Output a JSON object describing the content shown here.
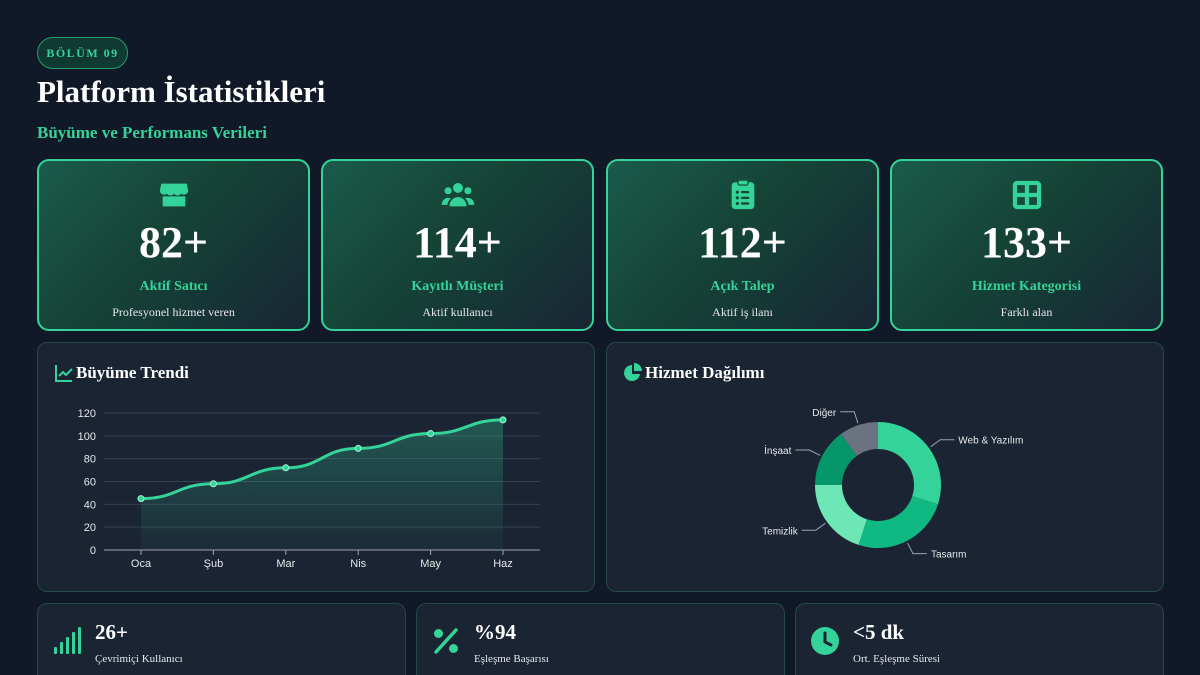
{
  "header": {
    "badge": "BÖLÜM 09",
    "title": "Platform İstatistikleri",
    "subtitle": "Büyüme ve Performans Verileri"
  },
  "stats": [
    {
      "icon": "store-icon",
      "value": "82+",
      "label": "Aktif Satıcı",
      "desc": "Profesyonel hizmet veren"
    },
    {
      "icon": "users-icon",
      "value": "114+",
      "label": "Kayıtlı Müşteri",
      "desc": "Aktif kullanıcı"
    },
    {
      "icon": "clipboard-list-icon",
      "value": "112+",
      "label": "Açık Talep",
      "desc": "Aktif iş ilanı"
    },
    {
      "icon": "grid-icon",
      "value": "133+",
      "label": "Hizmet Kategorisi",
      "desc": "Farklı alan"
    }
  ],
  "growth": {
    "title": "Büyüme Trendi",
    "chart_data": {
      "type": "area",
      "title": "Büyüme Trendi",
      "categories": [
        "Oca",
        "Şub",
        "Mar",
        "Nis",
        "May",
        "Haz"
      ],
      "values": [
        45,
        58,
        72,
        89,
        102,
        114
      ],
      "ylim": [
        0,
        120
      ],
      "yticks": [
        0,
        20,
        40,
        60,
        80,
        100,
        120
      ],
      "grid": true
    }
  },
  "distribution": {
    "title": "Hizmet Dağılımı",
    "chart_data": {
      "type": "pie",
      "title": "Hizmet Dağılımı",
      "donut": true,
      "labels": [
        "Web & Yazılım",
        "Tasarım",
        "Temizlik",
        "İnşaat",
        "Diğer"
      ],
      "values": [
        30,
        25,
        20,
        15,
        10
      ],
      "colors": [
        "#34d399",
        "#10b981",
        "#6ee7b7",
        "#059669",
        "#6b7280"
      ]
    }
  },
  "metrics": [
    {
      "icon": "signal-bars-icon",
      "value": "26+",
      "label": "Çevrimiçi Kullanıcı"
    },
    {
      "icon": "percent-icon",
      "value": "%94",
      "label": "Eşleşme Başarısı"
    },
    {
      "icon": "clock-icon",
      "value": "<5 dk",
      "label": "Ort. Eşleşme Süresi"
    }
  ],
  "colors": {
    "accent": "#34d399",
    "background": "#111827",
    "panel": "#1b2433"
  }
}
